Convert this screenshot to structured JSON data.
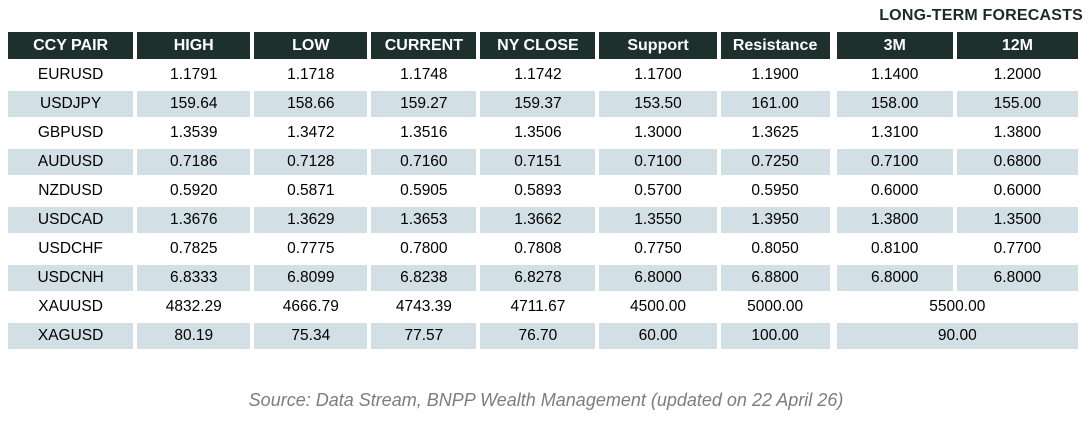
{
  "page": {
    "title": "LONG-TERM FORECASTS",
    "footer_source": "Source: Data Stream, BNPP Wealth Management (updated on 22 April 26)"
  },
  "colors": {
    "header_bg": "#1d302c",
    "header_text": "#ffffff",
    "stripe_row_bg": "#d2dfe4",
    "white_row_bg": "#ffffff",
    "body_text": "#000000",
    "title_text": "#1c2b27",
    "footer_text": "#7d7d7d"
  },
  "chart_data": {
    "type": "table",
    "title": "LONG-TERM FORECASTS",
    "columns": [
      "CCY PAIR",
      "HIGH",
      "LOW",
      "CURRENT",
      "NY CLOSE",
      "Support",
      "Resistance",
      "3M",
      "12M"
    ],
    "rows": [
      [
        "EURUSD",
        "1.1791",
        "1.1718",
        "1.1748",
        "1.1742",
        "1.1700",
        "1.1900",
        "1.1400",
        "1.2000"
      ],
      [
        "USDJPY",
        "159.64",
        "158.66",
        "159.27",
        "159.37",
        "153.50",
        "161.00",
        "158.00",
        "155.00"
      ],
      [
        "GBPUSD",
        "1.3539",
        "1.3472",
        "1.3516",
        "1.3506",
        "1.3000",
        "1.3625",
        "1.3100",
        "1.3800"
      ],
      [
        "AUDUSD",
        "0.7186",
        "0.7128",
        "0.7160",
        "0.7151",
        "0.7100",
        "0.7250",
        "0.7100",
        "0.6800"
      ],
      [
        "NZDUSD",
        "0.5920",
        "0.5871",
        "0.5905",
        "0.5893",
        "0.5700",
        "0.5950",
        "0.6000",
        "0.6000"
      ],
      [
        "USDCAD",
        "1.3676",
        "1.3629",
        "1.3653",
        "1.3662",
        "1.3550",
        "1.3950",
        "1.3800",
        "1.3500"
      ],
      [
        "USDCHF",
        "0.7825",
        "0.7775",
        "0.7800",
        "0.7808",
        "0.7750",
        "0.8050",
        "0.8100",
        "0.7700"
      ],
      [
        "USDCNH",
        "6.8333",
        "6.8099",
        "6.8238",
        "6.8278",
        "6.8000",
        "6.8800",
        "6.8000",
        "6.8000"
      ],
      [
        "XAUUSD",
        "4832.29",
        "4666.79",
        "4743.39",
        "4711.67",
        "4500.00",
        "5000.00",
        "5500.00"
      ],
      [
        "XAGUSD",
        "80.19",
        "75.34",
        "77.57",
        "76.70",
        "60.00",
        "100.00",
        "90.00"
      ]
    ],
    "layout_notes": "3M and 12M forecast columns are merged into a single cell for the XAUUSD and XAGUSD rows; rows alternate white and light blue-gray stripes"
  }
}
